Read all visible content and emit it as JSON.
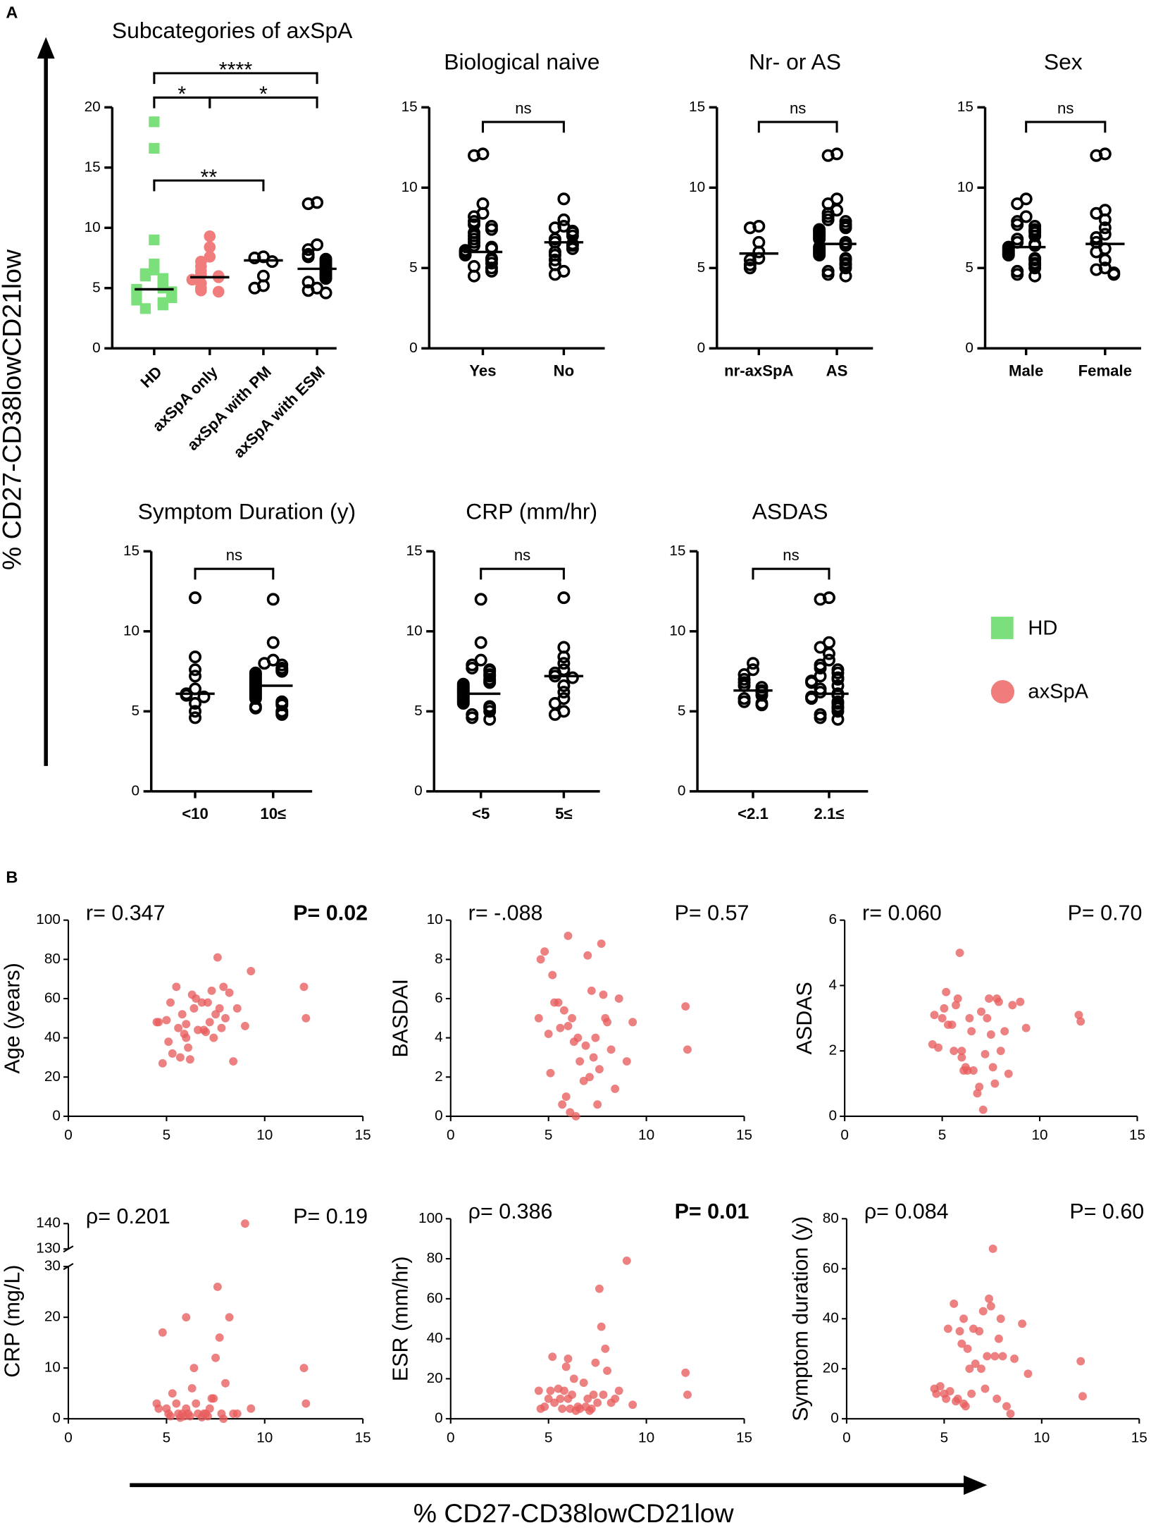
{
  "panel_labels": [
    "A",
    "B"
  ],
  "axis_title_y": "% CD27-CD38lowCD21low",
  "axis_title_x": "% CD27-CD38lowCD21low",
  "legend": [
    {
      "name": "HD",
      "color": "#7be07b",
      "marker": "square"
    },
    {
      "name": "axSpA",
      "color": "#f07c7c",
      "marker": "circle"
    }
  ],
  "chart_data": [
    {
      "type": "strip",
      "title": "Subcategories of axSpA",
      "categories": [
        "HD",
        "axSpA only",
        "axSpA with PM",
        "axSpA with ESM"
      ],
      "markers": [
        "square",
        "circle",
        "circle",
        "circle"
      ],
      "colors": [
        "#7be07b",
        "#f07c7c",
        "none",
        "none"
      ],
      "values": [
        [
          18.8,
          16.6,
          9,
          7,
          6.5,
          6.2,
          6,
          5.8,
          5.6,
          5.5,
          5.3,
          5.1,
          5,
          4.9,
          4.8,
          4.7,
          4.6,
          4.5,
          4.4,
          4.3,
          4.2,
          4,
          3.8,
          3.6,
          3.3
        ],
        [
          9.3,
          8.4,
          7.6,
          7.2,
          6.8,
          6.4,
          6.1,
          6,
          5.9,
          5.7,
          5.4,
          5,
          4.8,
          4.7
        ],
        [
          7.6,
          7.5,
          7.2,
          6,
          5.2,
          5
        ],
        [
          12.1,
          12,
          8.6,
          8.2,
          7.8,
          7.6,
          7.4,
          7.2,
          7,
          6.8,
          6.6,
          6.5,
          6.3,
          6.1,
          6,
          5.8,
          5.5,
          5,
          4.8,
          4.6
        ]
      ],
      "medians": [
        4.9,
        5.9,
        7.3,
        6.6
      ],
      "brackets": [
        {
          "from": 0,
          "to": 1,
          "label": "*"
        },
        {
          "from": 1,
          "to": 3,
          "label": "*"
        },
        {
          "from": 0,
          "to": 3,
          "label": "****"
        },
        {
          "from": 0,
          "to": 2,
          "label": "**"
        }
      ],
      "ylim": [
        0,
        20
      ],
      "yticks": [
        0,
        5,
        10,
        15,
        20
      ]
    },
    {
      "type": "strip",
      "title": "Biological naive",
      "categories": [
        "Yes",
        "No"
      ],
      "markers": [
        "circle",
        "circle"
      ],
      "colors": [
        "none",
        "none"
      ],
      "values": [
        [
          12.1,
          12,
          9,
          8.4,
          8.2,
          7.9,
          7.7,
          7.6,
          7.4,
          7.2,
          7,
          6.8,
          6.6,
          6.4,
          6.3,
          6.2,
          6.1,
          6,
          5.9,
          5.8,
          5.6,
          5.5,
          5.3,
          5.1,
          5,
          4.8,
          4.5
        ],
        [
          9.3,
          8,
          7.6,
          7.5,
          7.3,
          7.2,
          7,
          6.8,
          6.6,
          6.5,
          6.4,
          6.2,
          6,
          5.8,
          5.5,
          5.2,
          4.8,
          4.6
        ]
      ],
      "medians": [
        6.0,
        6.6
      ],
      "brackets": [
        {
          "from": 0,
          "to": 1,
          "label": "ns"
        }
      ],
      "ylim": [
        0,
        15
      ],
      "yticks": [
        0,
        5,
        10,
        15
      ]
    },
    {
      "type": "strip",
      "title": "Nr- or  AS",
      "categories": [
        "nr-axSpA",
        "AS"
      ],
      "markers": [
        "circle",
        "circle"
      ],
      "colors": [
        "none",
        "none"
      ],
      "values": [
        [
          7.6,
          7.5,
          6.6,
          6,
          5.6,
          5.5,
          5.2,
          5
        ],
        [
          12.1,
          12,
          9.3,
          9,
          8.6,
          8.4,
          8.2,
          8,
          7.9,
          7.7,
          7.6,
          7.5,
          7.4,
          7.3,
          7.2,
          7.1,
          7,
          6.9,
          6.8,
          6.6,
          6.5,
          6.4,
          6.3,
          6.2,
          6.1,
          6,
          5.9,
          5.8,
          5.6,
          5.5,
          5.3,
          5.2,
          5,
          4.8,
          4.6,
          4.5
        ]
      ],
      "medians": [
        5.9,
        6.5
      ],
      "brackets": [
        {
          "from": 0,
          "to": 1,
          "label": "ns"
        }
      ],
      "ylim": [
        0,
        15
      ],
      "yticks": [
        0,
        5,
        10,
        15
      ]
    },
    {
      "type": "strip",
      "title": "Sex",
      "categories": [
        "Male",
        "Female"
      ],
      "markers": [
        "circle",
        "circle"
      ],
      "colors": [
        "none",
        "none"
      ],
      "values": [
        [
          9.3,
          9,
          8.2,
          7.9,
          7.7,
          7.6,
          7.4,
          7.3,
          7.2,
          7,
          6.8,
          6.6,
          6.5,
          6.4,
          6.3,
          6.2,
          6.1,
          6,
          5.9,
          5.8,
          5.6,
          5.5,
          5.3,
          5.2,
          5,
          4.8,
          4.6,
          4.5
        ],
        [
          12.1,
          12,
          8.6,
          8.4,
          8,
          7.5,
          7.1,
          6.9,
          6.6,
          6.2,
          6,
          5.5,
          5,
          4.9,
          4.7,
          4.6
        ]
      ],
      "medians": [
        6.3,
        6.5
      ],
      "brackets": [
        {
          "from": 0,
          "to": 1,
          "label": "ns"
        }
      ],
      "ylim": [
        0,
        15
      ],
      "yticks": [
        0,
        5,
        10,
        15
      ]
    },
    {
      "type": "strip",
      "title": "Symptom Duration (y)",
      "categories": [
        "<10",
        "10≤"
      ],
      "markers": [
        "circle",
        "circle"
      ],
      "colors": [
        "none",
        "none"
      ],
      "values": [
        [
          12.1,
          8.4,
          7.6,
          7.2,
          6.4,
          6.1,
          6,
          5.9,
          5.5,
          5,
          4.6
        ],
        [
          12,
          9.3,
          8.2,
          8,
          7.9,
          7.7,
          7.6,
          7.5,
          7.4,
          7.3,
          7.2,
          7.1,
          7,
          6.9,
          6.8,
          6.7,
          6.6,
          6.5,
          6.4,
          6.3,
          6.2,
          6.1,
          6,
          5.9,
          5.8,
          5.6,
          5.5,
          5.4,
          5.3,
          5.2,
          5,
          4.9,
          4.8
        ]
      ],
      "medians": [
        6.1,
        6.6
      ],
      "brackets": [
        {
          "from": 0,
          "to": 1,
          "label": "ns"
        }
      ],
      "ylim": [
        0,
        15
      ],
      "yticks": [
        0,
        5,
        10,
        15
      ]
    },
    {
      "type": "strip",
      "title": "CRP (mm/hr)",
      "categories": [
        "<5",
        "5≤"
      ],
      "markers": [
        "circle",
        "circle"
      ],
      "colors": [
        "none",
        "none"
      ],
      "values": [
        [
          12,
          9.3,
          8.2,
          7.9,
          7.7,
          7.6,
          7.5,
          7.3,
          7.2,
          7,
          6.9,
          6.8,
          6.7,
          6.6,
          6.5,
          6.4,
          6.3,
          6.2,
          6.1,
          6,
          5.9,
          5.8,
          5.7,
          5.6,
          5.5,
          5.3,
          5.2,
          5,
          4.8,
          4.6,
          4.5
        ],
        [
          12.1,
          9,
          8.4,
          8,
          7.6,
          7.4,
          7.2,
          7.1,
          6.6,
          6.2,
          5.8,
          5.5,
          5,
          4.8
        ]
      ],
      "medians": [
        6.1,
        7.2
      ],
      "brackets": [
        {
          "from": 0,
          "to": 1,
          "label": "ns"
        }
      ],
      "ylim": [
        0,
        15
      ],
      "yticks": [
        0,
        5,
        10,
        15
      ]
    },
    {
      "type": "strip",
      "title": "ASDAS",
      "categories": [
        "<2.1",
        "2.1≤"
      ],
      "markers": [
        "circle",
        "circle"
      ],
      "colors": [
        "none",
        "none"
      ],
      "values": [
        [
          8,
          7.6,
          7.3,
          7,
          6.8,
          6.6,
          6.5,
          6.3,
          6.2,
          6,
          5.8,
          5.6,
          5.5,
          5.4
        ],
        [
          12.1,
          12,
          9.3,
          9,
          8.6,
          8.2,
          7.9,
          7.7,
          7.6,
          7.4,
          7.2,
          7.1,
          7,
          6.9,
          6.8,
          6.6,
          6.4,
          6.2,
          6.1,
          6,
          5.9,
          5.8,
          5.6,
          5.5,
          5.3,
          5.2,
          5,
          4.8,
          4.6,
          4.5
        ]
      ],
      "medians": [
        6.3,
        6.1
      ],
      "brackets": [
        {
          "from": 0,
          "to": 1,
          "label": "ns"
        }
      ],
      "ylim": [
        0,
        15
      ],
      "yticks": [
        0,
        5,
        10,
        15
      ]
    },
    {
      "type": "scatter",
      "y_label": "Age (years)",
      "r_label": "r= 0.347",
      "p_label": "P= 0.02",
      "p_bold": true,
      "color": "#e85d5d",
      "x": [
        4.5,
        4.8,
        5,
        5.1,
        5.2,
        5.3,
        5.5,
        5.6,
        5.7,
        5.8,
        5.9,
        6,
        6,
        6.1,
        6.2,
        6.3,
        6.4,
        6.5,
        6.6,
        6.8,
        7,
        7.2,
        7.3,
        7.4,
        7.5,
        7.6,
        7.7,
        7.8,
        7.9,
        8,
        8.2,
        8.4,
        8.6,
        9,
        9.3,
        12,
        12.1,
        4.6,
        6.9,
        7.1
      ],
      "values": [
        48,
        27,
        49,
        38,
        58,
        32,
        66,
        45,
        30,
        52,
        42,
        47,
        40,
        35,
        29,
        62,
        55,
        60,
        44,
        58,
        43,
        48,
        64,
        40,
        52,
        81,
        55,
        45,
        66,
        50,
        63,
        28,
        55,
        46,
        74,
        66,
        50,
        48,
        44,
        58
      ],
      "xlim": [
        0,
        15
      ],
      "xticks": [
        0,
        5,
        10,
        15
      ],
      "ylim": [
        0,
        100
      ],
      "yticks": [
        0,
        20,
        40,
        60,
        80,
        100
      ]
    },
    {
      "type": "scatter",
      "y_label": "BASDAI",
      "r_label": "r= -.088",
      "p_label": "P= 0.57",
      "p_bold": false,
      "color": "#e85d5d",
      "x": [
        4.5,
        4.8,
        5,
        5.1,
        5.2,
        5.3,
        5.5,
        5.6,
        5.7,
        5.8,
        5.9,
        6,
        6,
        6.1,
        6.2,
        6.3,
        6.4,
        6.5,
        6.6,
        6.8,
        7,
        7.2,
        7.3,
        7.4,
        7.5,
        7.6,
        7.7,
        7.8,
        7.9,
        8,
        8.2,
        8.4,
        8.6,
        9,
        9.3,
        12,
        12.1,
        4.6,
        6.9,
        7.1
      ],
      "values": [
        5,
        8.4,
        4.2,
        2.2,
        7.2,
        5.8,
        5.8,
        4.5,
        0.6,
        5.4,
        1,
        9.2,
        4.6,
        0.2,
        5,
        3.8,
        0,
        4,
        2.8,
        1.8,
        8.2,
        6.4,
        3,
        4,
        0.6,
        2.4,
        8.8,
        6.2,
        5,
        4.8,
        3.4,
        1.4,
        6,
        2.8,
        4.8,
        5.6,
        3.4,
        8,
        3.6,
        2
      ],
      "xlim": [
        0,
        15
      ],
      "xticks": [
        0,
        5,
        10,
        15
      ],
      "ylim": [
        0,
        10
      ],
      "yticks": [
        0,
        2,
        4,
        6,
        8,
        10
      ]
    },
    {
      "type": "scatter",
      "y_label": "ASDAS",
      "r_label": "r= 0.060",
      "p_label": "P= 0.70",
      "p_bold": false,
      "color": "#e85d5d",
      "x": [
        4.5,
        4.8,
        5,
        5.1,
        5.2,
        5.3,
        5.5,
        5.6,
        5.7,
        5.8,
        5.9,
        6,
        6,
        6.1,
        6.2,
        6.3,
        6.4,
        6.5,
        6.6,
        6.8,
        7,
        7.2,
        7.3,
        7.4,
        7.5,
        7.6,
        7.7,
        7.8,
        7.9,
        8,
        8.2,
        8.4,
        8.6,
        9,
        9.3,
        12,
        12.1,
        4.6,
        6.9,
        7.1
      ],
      "values": [
        2.2,
        2.1,
        3,
        3.3,
        3.8,
        2.8,
        2.8,
        2,
        3.4,
        3.6,
        5,
        1.8,
        2,
        1.4,
        1.5,
        1.4,
        3,
        2.6,
        1.4,
        0.7,
        3.2,
        1.9,
        3,
        3.6,
        2.5,
        1.5,
        1,
        3.6,
        3.5,
        2,
        2.6,
        1.3,
        3.4,
        3.5,
        2.7,
        3.1,
        2.9,
        3.1,
        0.9,
        0.2
      ],
      "xlim": [
        0,
        15
      ],
      "xticks": [
        0,
        5,
        10,
        15
      ],
      "ylim": [
        0,
        6
      ],
      "yticks": [
        0,
        2,
        4,
        6
      ]
    },
    {
      "type": "scatter",
      "y_label": "CRP (mg/L)",
      "r_label": "ρ= 0.201",
      "p_label": "P= 0.19",
      "p_bold": false,
      "color": "#e85d5d",
      "x": [
        4.5,
        4.8,
        5,
        5.1,
        5.2,
        5.3,
        5.5,
        5.6,
        5.7,
        5.8,
        5.9,
        6,
        6,
        6.1,
        6.2,
        6.3,
        6.4,
        6.5,
        6.6,
        6.8,
        7,
        7.2,
        7.3,
        7.4,
        7.5,
        7.6,
        7.7,
        7.8,
        7.9,
        8,
        8.2,
        8.4,
        8.6,
        9,
        9.3,
        12,
        12.1,
        4.6,
        6.9,
        7.1
      ],
      "values": [
        3,
        17,
        2,
        1,
        0.5,
        5,
        3,
        1,
        0.2,
        1,
        0.5,
        20,
        2,
        1,
        0.5,
        6,
        10,
        3,
        1,
        0.3,
        1,
        2,
        4,
        4,
        12,
        26,
        16,
        1,
        0,
        7,
        20,
        1,
        1,
        140,
        2,
        10,
        3,
        2,
        1,
        0.5
      ],
      "xlim": [
        0,
        15
      ],
      "xticks": [
        0,
        5,
        10,
        15
      ],
      "ylim": [
        0,
        140
      ],
      "yticks": [
        0,
        10,
        20,
        30,
        130,
        140
      ],
      "ybreak": [
        30,
        130
      ]
    },
    {
      "type": "scatter",
      "y_label": "ESR (mm/hr)",
      "r_label": "ρ= 0.386",
      "p_label": "P= 0.01",
      "p_bold": true,
      "color": "#e85d5d",
      "x": [
        4.5,
        4.8,
        5,
        5.1,
        5.2,
        5.3,
        5.5,
        5.6,
        5.7,
        5.8,
        5.9,
        6,
        6,
        6.1,
        6.2,
        6.3,
        6.4,
        6.5,
        6.6,
        6.8,
        7,
        7.2,
        7.3,
        7.4,
        7.5,
        7.6,
        7.7,
        7.8,
        7.9,
        8,
        8.2,
        8.4,
        8.6,
        9,
        9.3,
        12,
        12.1,
        4.6,
        6.9,
        7.1
      ],
      "values": [
        14,
        6,
        10,
        14,
        31,
        8,
        15,
        10,
        5,
        14,
        26,
        30,
        10,
        5,
        12,
        20,
        4,
        6,
        5,
        18,
        10,
        5,
        12,
        28,
        8,
        65,
        46,
        12,
        35,
        24,
        8,
        10,
        14,
        79,
        7,
        23,
        12,
        5,
        6,
        4
      ],
      "xlim": [
        0,
        15
      ],
      "xticks": [
        0,
        5,
        10,
        15
      ],
      "ylim": [
        0,
        100
      ],
      "yticks": [
        0,
        20,
        40,
        60,
        80,
        100
      ]
    },
    {
      "type": "scatter",
      "y_label": "Symptom duration (y)",
      "r_label": "ρ= 0.084",
      "p_label": "P= 0.60",
      "p_bold": false,
      "color": "#e85d5d",
      "x": [
        4.5,
        4.8,
        5,
        5.1,
        5.2,
        5.3,
        5.5,
        5.6,
        5.7,
        5.8,
        5.9,
        6,
        6,
        6.1,
        6.2,
        6.3,
        6.4,
        6.5,
        6.6,
        6.8,
        7,
        7.2,
        7.3,
        7.4,
        7.5,
        7.6,
        7.7,
        7.8,
        7.9,
        8,
        8.2,
        8.4,
        8.6,
        9,
        9.3,
        12,
        12.1,
        4.6,
        6.9,
        7.1
      ],
      "values": [
        12,
        13,
        10,
        8,
        36,
        11,
        46,
        7,
        8,
        35,
        30,
        6,
        40,
        5,
        28,
        20,
        10,
        36,
        22,
        35,
        43,
        25,
        48,
        45,
        68,
        25,
        8,
        32,
        40,
        25,
        5,
        2,
        24,
        38,
        18,
        23,
        9,
        10,
        20,
        12
      ],
      "xlim": [
        0,
        15
      ],
      "xticks": [
        0,
        5,
        10,
        15
      ],
      "ylim": [
        0,
        80
      ],
      "yticks": [
        0,
        20,
        40,
        60,
        80
      ]
    }
  ]
}
